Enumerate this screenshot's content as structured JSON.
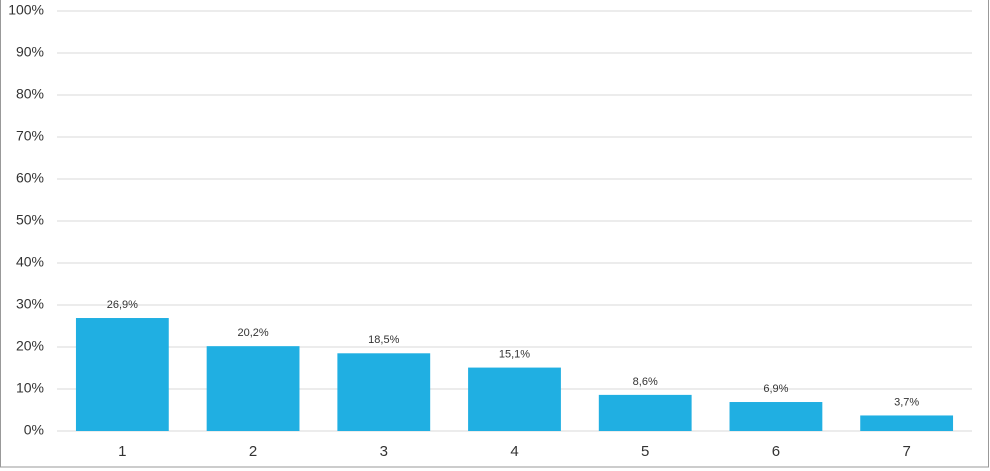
{
  "chart_data": {
    "type": "bar",
    "categories": [
      "1",
      "2",
      "3",
      "4",
      "5",
      "6",
      "7"
    ],
    "values": [
      26.9,
      20.2,
      18.5,
      15.1,
      8.6,
      6.9,
      3.7
    ],
    "value_labels": [
      "26,9%",
      "20,2%",
      "18,5%",
      "15,1%",
      "8,6%",
      "6,9%",
      "3,7%"
    ],
    "color": "#20afe2",
    "ylim": [
      0,
      100
    ],
    "yticks": [
      {
        "value": 0,
        "label": "0%"
      },
      {
        "value": 10,
        "label": "10%"
      },
      {
        "value": 20,
        "label": "20%"
      },
      {
        "value": 30,
        "label": "30%"
      },
      {
        "value": 40,
        "label": "40%"
      },
      {
        "value": 50,
        "label": "50%"
      },
      {
        "value": 60,
        "label": "60%"
      },
      {
        "value": 70,
        "label": "70%"
      },
      {
        "value": 80,
        "label": "80%"
      },
      {
        "value": 90,
        "label": "90%"
      },
      {
        "value": 100,
        "label": "100%"
      }
    ],
    "grid": true
  }
}
